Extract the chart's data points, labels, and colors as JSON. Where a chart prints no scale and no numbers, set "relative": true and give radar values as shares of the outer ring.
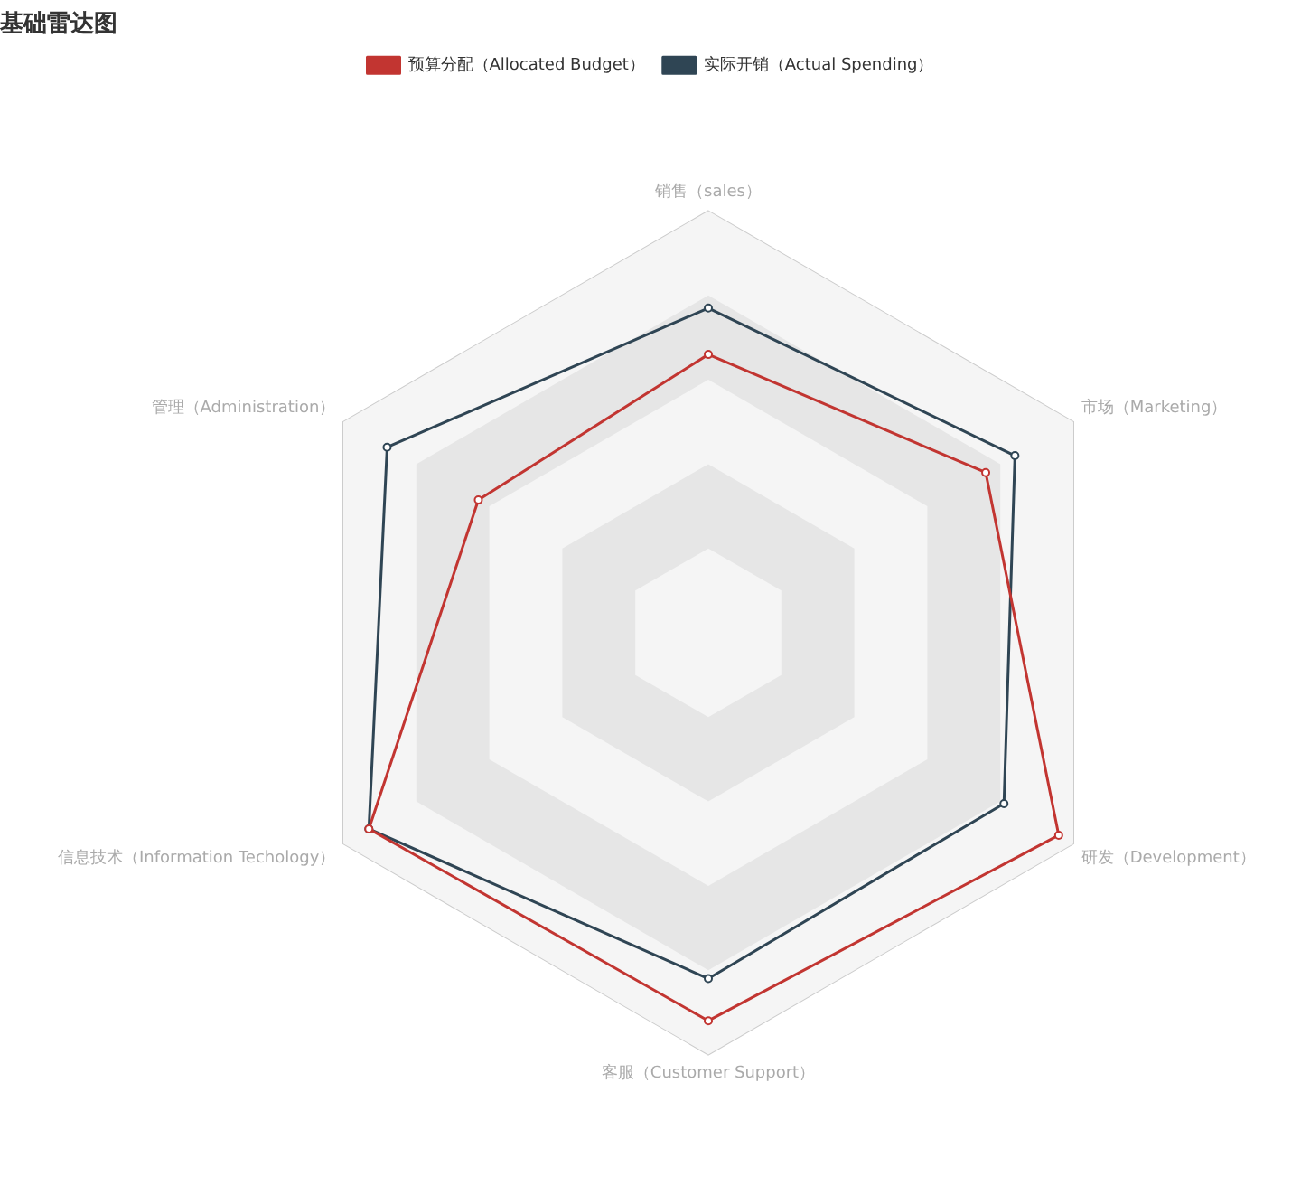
{
  "chart_data": {
    "type": "radar",
    "title": "基础雷达图",
    "relative": true,
    "legend": "top",
    "marker": "circle",
    "grid": true,
    "categories": [
      "销售（sales）",
      "市场（Marketing）",
      "研发（Development）",
      "客服（Customer Support）",
      "信息技术（Information Techology）",
      "管理（Administration）"
    ],
    "series": [
      {
        "name": "预算分配（Allocated Budget）",
        "color": "#c23531",
        "values": [
          0.66,
          0.76,
          0.96,
          0.92,
          0.93,
          0.63
        ]
      },
      {
        "name": "实际开销（Actual Spending）",
        "color": "#2f4554",
        "values": [
          0.77,
          0.84,
          0.81,
          0.82,
          0.93,
          0.88
        ]
      }
    ]
  }
}
